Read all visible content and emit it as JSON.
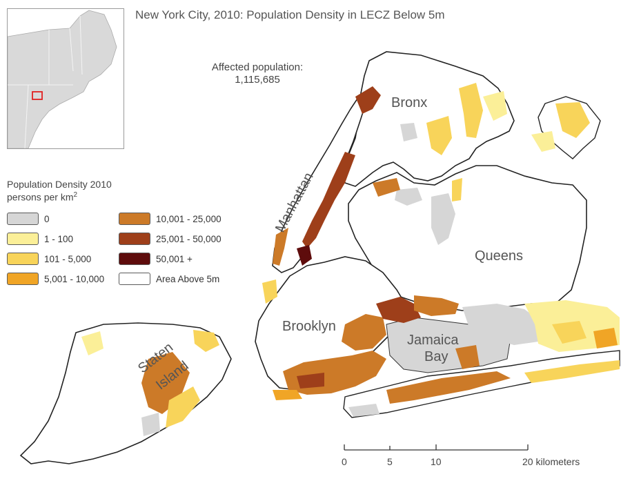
{
  "title": "New York City, 2010: Population Density in LECZ Below 5m",
  "affected": {
    "label": "Affected population:",
    "value": "1,115,685"
  },
  "legend": {
    "title_line1": "Population Density 2010",
    "title_line2": "persons per km",
    "title_sup": "2",
    "items": [
      {
        "label": "0",
        "color": "#d6d6d6"
      },
      {
        "label": "1 - 100",
        "color": "#fbef98"
      },
      {
        "label": "101 - 5,000",
        "color": "#f8d45a"
      },
      {
        "label": "5,001 - 10,000",
        "color": "#f0a526"
      },
      {
        "label": "10,001 - 25,000",
        "color": "#cc7a28"
      },
      {
        "label": "25,001 - 50,000",
        "color": "#9e3f1a"
      },
      {
        "label": "50,001 +",
        "color": "#5e0c0c"
      },
      {
        "label": "Area Above 5m",
        "color": "#ffffff"
      }
    ]
  },
  "boroughs": {
    "bronx": "Bronx",
    "manhattan": "Manhattan",
    "queens": "Queens",
    "brooklyn": "Brooklyn",
    "jamaica_bay_1": "Jamaica",
    "jamaica_bay_2": "Bay",
    "staten_1": "Staten",
    "staten_2": "Island"
  },
  "scale_bar": {
    "ticks": [
      "0",
      "5",
      "10",
      "20 kilometers"
    ]
  }
}
